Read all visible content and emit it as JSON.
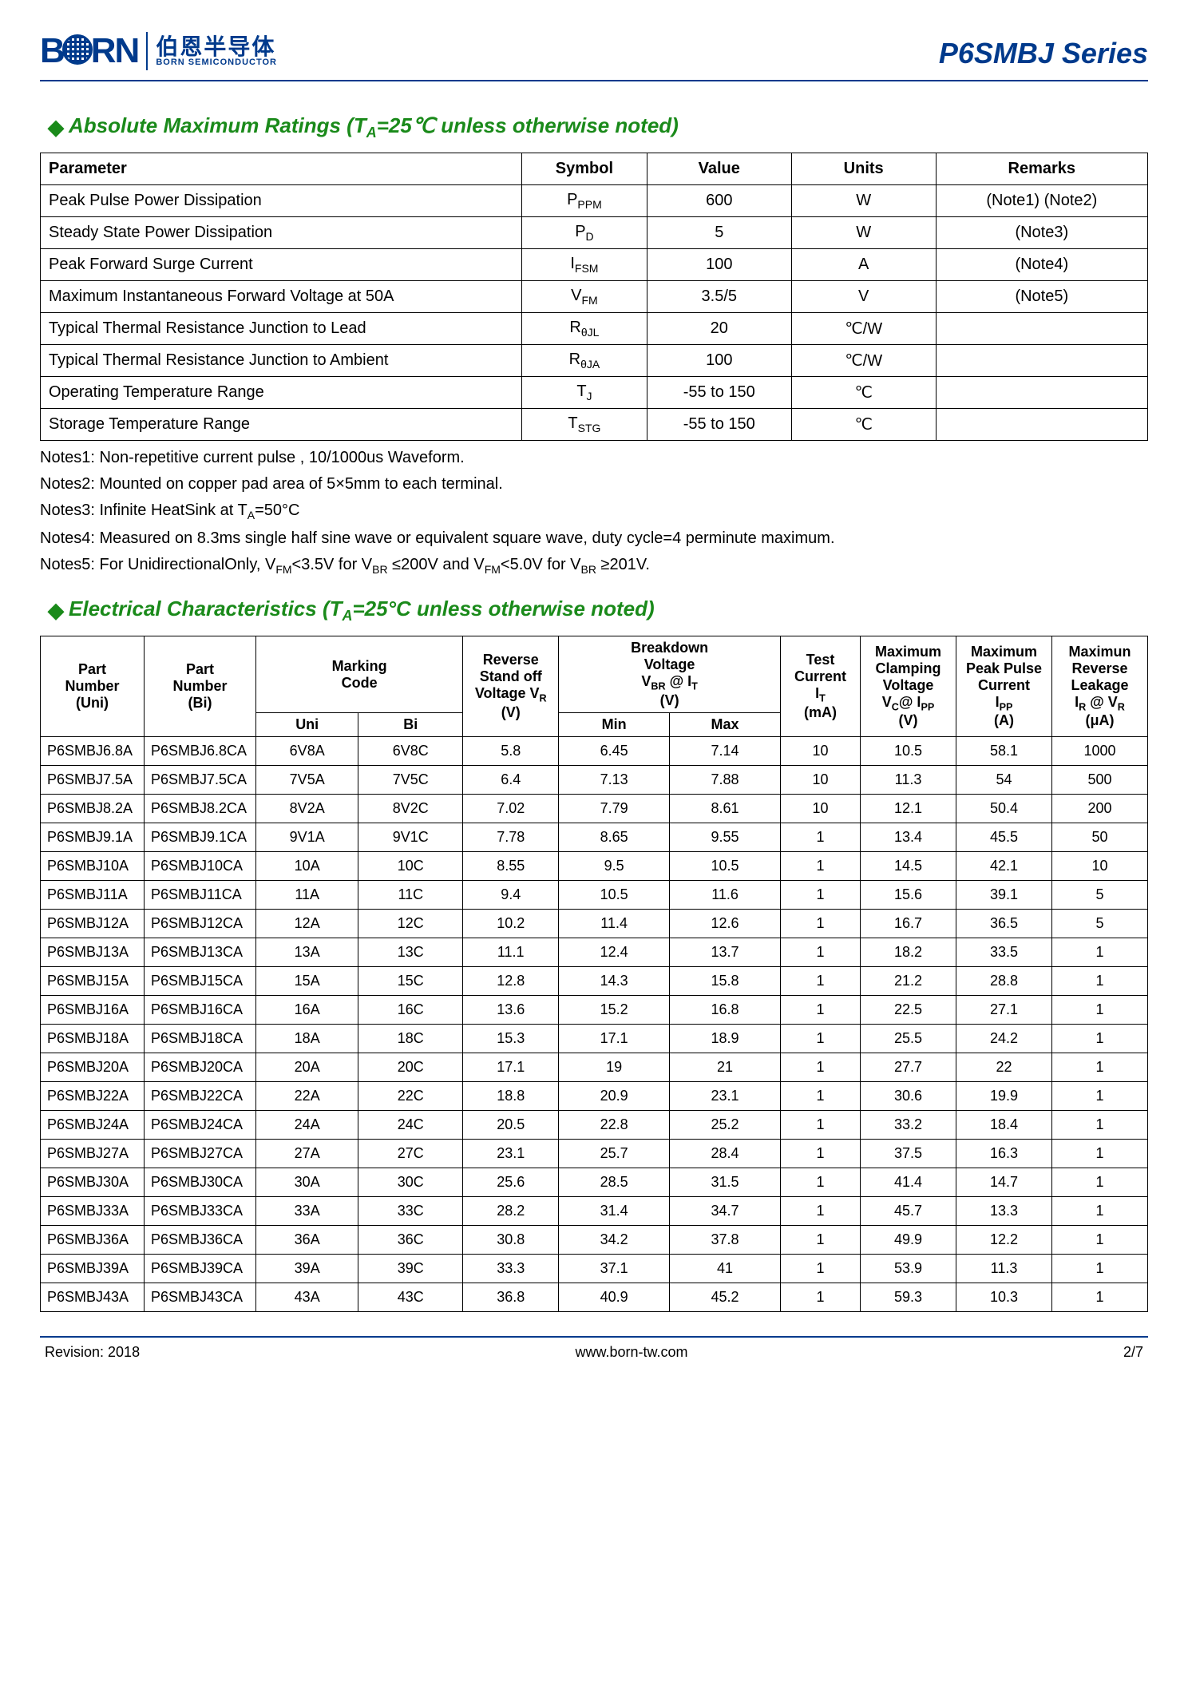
{
  "header": {
    "brand_latin": "BORN",
    "brand_cn": "伯恩半导体",
    "brand_en_sub": "BORN SEMICONDUCTOR",
    "series": "P6SMBJ Series"
  },
  "section1": {
    "title_pre": "Absolute Maximum Ratings (T",
    "title_sub": "A",
    "title_post": "=25℃ unless otherwise noted)",
    "columns": [
      "Parameter",
      "Symbol",
      "Value",
      "Units",
      "Remarks"
    ],
    "rows": [
      {
        "param": "Peak Pulse Power Dissipation",
        "sym": "P",
        "sub": "PPM",
        "val": "600",
        "unit": "W",
        "rem": "(Note1) (Note2)"
      },
      {
        "param": "Steady State Power Dissipation",
        "sym": "P",
        "sub": "D",
        "val": "5",
        "unit": "W",
        "rem": "(Note3)"
      },
      {
        "param": "Peak Forward Surge Current",
        "sym": "I",
        "sub": "FSM",
        "val": "100",
        "unit": "A",
        "rem": "(Note4)"
      },
      {
        "param": "Maximum Instantaneous Forward Voltage at 50A",
        "sym": "V",
        "sub": "FM",
        "val": "3.5/5",
        "unit": "V",
        "rem": "(Note5)"
      },
      {
        "param": "Typical Thermal Resistance Junction to Lead",
        "sym": "R",
        "sub": "θJL",
        "val": "20",
        "unit": "℃/W",
        "rem": ""
      },
      {
        "param": "Typical Thermal Resistance Junction to Ambient",
        "sym": "R",
        "sub": "θJA",
        "val": "100",
        "unit": "℃/W",
        "rem": ""
      },
      {
        "param": "Operating Temperature Range",
        "sym": "T",
        "sub": "J",
        "val": "-55 to 150",
        "unit": "℃",
        "rem": ""
      },
      {
        "param": "Storage Temperature Range",
        "sym": "T",
        "sub": "STG",
        "val": "-55 to 150",
        "unit": "℃",
        "rem": ""
      }
    ],
    "notes": [
      "Notes1: Non-repetitive current pulse , 10/1000us Waveform.",
      "Notes2: Mounted on copper pad area of 5×5mm to each terminal.",
      "Notes3: Infinite HeatSink at T_A=50°C",
      "Notes4: Measured on 8.3ms single half sine wave or equivalent square wave, duty cycle=4 perminute maximum.",
      "Notes5: For UnidirectionalOnly, V_FM<3.5V for V_BR ≤200V and V_FM<5.0V for V_BR ≥201V."
    ]
  },
  "section2": {
    "title_pre": "Electrical Characteristics (T",
    "title_sub": "A",
    "title_post": "=25°C unless otherwise noted)",
    "head": {
      "pn_uni": "Part Number (Uni)",
      "pn_bi": "Part Number (Bi)",
      "marking": "Marking Code",
      "mk_uni": "Uni",
      "mk_bi": "Bi",
      "vr": "Reverse Stand off Voltage V_R (V)",
      "vbr": "Breakdown Voltage V_BR @ I_T (V)",
      "vbr_min": "Min",
      "vbr_max": "Max",
      "it": "Test Current I_T (mA)",
      "vc": "Maximum Clamping Voltage V_C@ I_PP (V)",
      "ipp": "Maximum Peak Pulse Current I_PP (A)",
      "ir": "Maximun Reverse Leakage I_R @ V_R (μA)"
    },
    "rows": [
      [
        "P6SMBJ6.8A",
        "P6SMBJ6.8CA",
        "6V8A",
        "6V8C",
        "5.8",
        "6.45",
        "7.14",
        "10",
        "10.5",
        "58.1",
        "1000"
      ],
      [
        "P6SMBJ7.5A",
        "P6SMBJ7.5CA",
        "7V5A",
        "7V5C",
        "6.4",
        "7.13",
        "7.88",
        "10",
        "11.3",
        "54",
        "500"
      ],
      [
        "P6SMBJ8.2A",
        "P6SMBJ8.2CA",
        "8V2A",
        "8V2C",
        "7.02",
        "7.79",
        "8.61",
        "10",
        "12.1",
        "50.4",
        "200"
      ],
      [
        "P6SMBJ9.1A",
        "P6SMBJ9.1CA",
        "9V1A",
        "9V1C",
        "7.78",
        "8.65",
        "9.55",
        "1",
        "13.4",
        "45.5",
        "50"
      ],
      [
        "P6SMBJ10A",
        "P6SMBJ10CA",
        "10A",
        "10C",
        "8.55",
        "9.5",
        "10.5",
        "1",
        "14.5",
        "42.1",
        "10"
      ],
      [
        "P6SMBJ11A",
        "P6SMBJ11CA",
        "11A",
        "11C",
        "9.4",
        "10.5",
        "11.6",
        "1",
        "15.6",
        "39.1",
        "5"
      ],
      [
        "P6SMBJ12A",
        "P6SMBJ12CA",
        "12A",
        "12C",
        "10.2",
        "11.4",
        "12.6",
        "1",
        "16.7",
        "36.5",
        "5"
      ],
      [
        "P6SMBJ13A",
        "P6SMBJ13CA",
        "13A",
        "13C",
        "11.1",
        "12.4",
        "13.7",
        "1",
        "18.2",
        "33.5",
        "1"
      ],
      [
        "P6SMBJ15A",
        "P6SMBJ15CA",
        "15A",
        "15C",
        "12.8",
        "14.3",
        "15.8",
        "1",
        "21.2",
        "28.8",
        "1"
      ],
      [
        "P6SMBJ16A",
        "P6SMBJ16CA",
        "16A",
        "16C",
        "13.6",
        "15.2",
        "16.8",
        "1",
        "22.5",
        "27.1",
        "1"
      ],
      [
        "P6SMBJ18A",
        "P6SMBJ18CA",
        "18A",
        "18C",
        "15.3",
        "17.1",
        "18.9",
        "1",
        "25.5",
        "24.2",
        "1"
      ],
      [
        "P6SMBJ20A",
        "P6SMBJ20CA",
        "20A",
        "20C",
        "17.1",
        "19",
        "21",
        "1",
        "27.7",
        "22",
        "1"
      ],
      [
        "P6SMBJ22A",
        "P6SMBJ22CA",
        "22A",
        "22C",
        "18.8",
        "20.9",
        "23.1",
        "1",
        "30.6",
        "19.9",
        "1"
      ],
      [
        "P6SMBJ24A",
        "P6SMBJ24CA",
        "24A",
        "24C",
        "20.5",
        "22.8",
        "25.2",
        "1",
        "33.2",
        "18.4",
        "1"
      ],
      [
        "P6SMBJ27A",
        "P6SMBJ27CA",
        "27A",
        "27C",
        "23.1",
        "25.7",
        "28.4",
        "1",
        "37.5",
        "16.3",
        "1"
      ],
      [
        "P6SMBJ30A",
        "P6SMBJ30CA",
        "30A",
        "30C",
        "25.6",
        "28.5",
        "31.5",
        "1",
        "41.4",
        "14.7",
        "1"
      ],
      [
        "P6SMBJ33A",
        "P6SMBJ33CA",
        "33A",
        "33C",
        "28.2",
        "31.4",
        "34.7",
        "1",
        "45.7",
        "13.3",
        "1"
      ],
      [
        "P6SMBJ36A",
        "P6SMBJ36CA",
        "36A",
        "36C",
        "30.8",
        "34.2",
        "37.8",
        "1",
        "49.9",
        "12.2",
        "1"
      ],
      [
        "P6SMBJ39A",
        "P6SMBJ39CA",
        "39A",
        "39C",
        "33.3",
        "37.1",
        "41",
        "1",
        "53.9",
        "11.3",
        "1"
      ],
      [
        "P6SMBJ43A",
        "P6SMBJ43CA",
        "43A",
        "43C",
        "36.8",
        "40.9",
        "45.2",
        "1",
        "59.3",
        "10.3",
        "1"
      ]
    ]
  },
  "footer": {
    "rev": "Revision: 2018",
    "url": "www.born-tw.com",
    "page": "2/7"
  },
  "style": {
    "accent": "#003a8c",
    "section_green": "#1a8a1a",
    "border": "#000000",
    "bg": "#ffffff"
  }
}
